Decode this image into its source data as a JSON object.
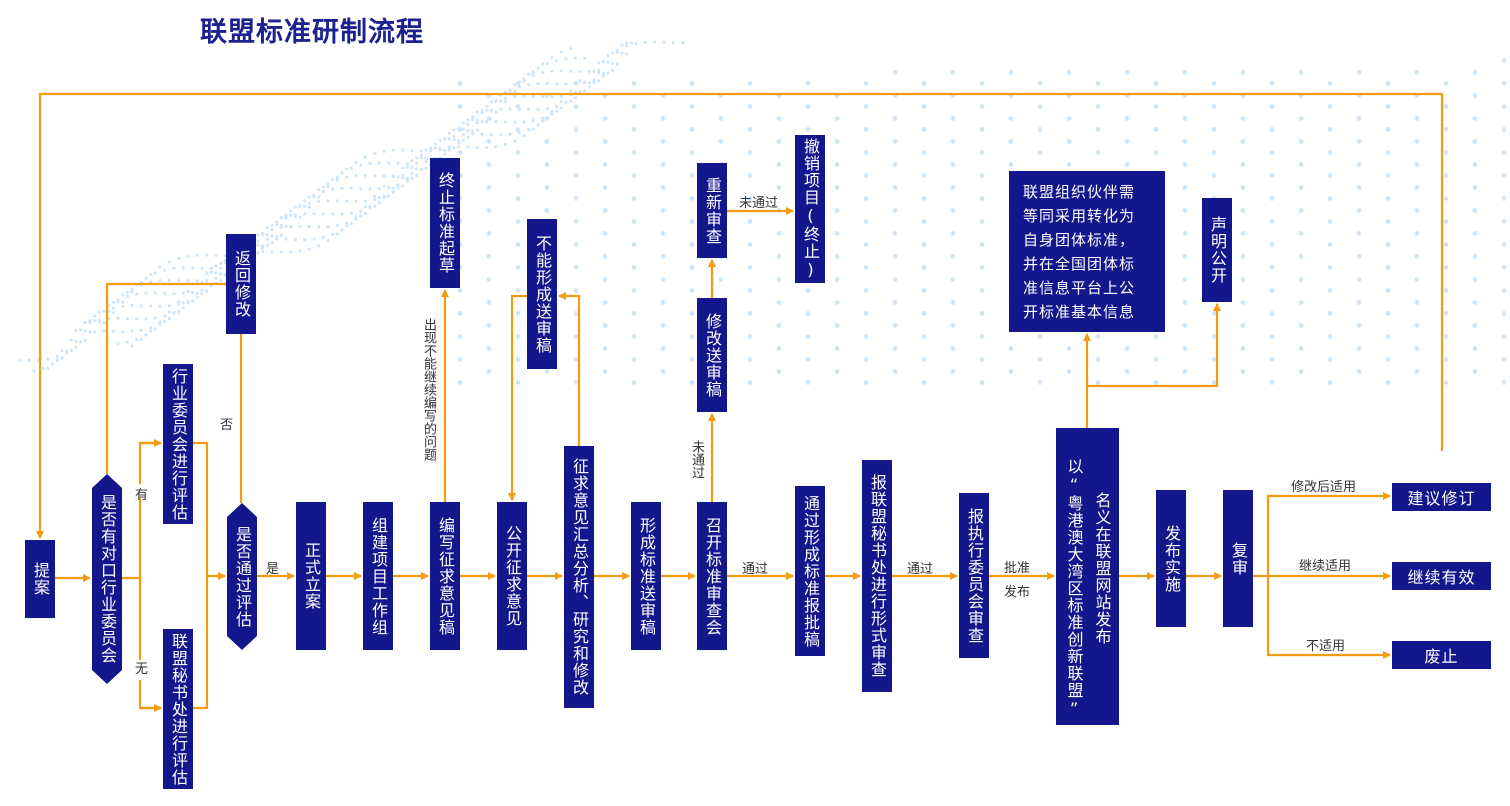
{
  "title": "联盟标准研制流程",
  "colors": {
    "box": "#14168c",
    "line": "#f39c12",
    "title": "#1c2190",
    "dots": "#cfe6f8"
  },
  "nodes": {
    "proposal": "提案",
    "has_committee": "是否有对口行业委员会",
    "committee_eval": "行业委员会进行评估",
    "secretariat_eval": "联盟秘书处进行评估",
    "return_modify": "返回修改",
    "passed_eval": "是否通过评估",
    "formal_filing": "正式立案",
    "form_group": "组建项目工作组",
    "draft_consult": "编写征求意见稿",
    "terminate_draft": "终止标准起草",
    "public_consult": "公开征求意见",
    "cannot_form": "不能形成送审稿",
    "analyze": "征求意见汇总分析、研究和修改",
    "form_review_draft": "形成标准送审稿",
    "review_meeting": "召开标准审查会",
    "modify_review": "修改送审稿",
    "re_review": "重新审查",
    "revoke": "撤销项目(终止)",
    "approval_draft": "通过形成标准报批稿",
    "formal_check": "报联盟秘书处进行形式审查",
    "exec_review": "报执行委员会审查",
    "publish_col1": "以“粤港澳大湾区标准创新联盟”",
    "publish_col2": "名义在联盟网站发布",
    "partner_adopt": [
      "联盟组织伙伴需",
      "等同采用转化为",
      "自身团体标准，",
      "并在全国团体标",
      "准信息平台上公",
      "开标准基本信息"
    ],
    "declare": "声明公开",
    "implement": "发布实施",
    "re_examine": "复审",
    "suggest_revise": "建议修订",
    "stay_valid": "继续有效",
    "abolish": "废止"
  },
  "labels": {
    "yes_has": "有",
    "no_has": "无",
    "no": "否",
    "yes": "是",
    "cannot_continue": "出现不能继续编写的问题",
    "not_passed_h": "未通过",
    "not_passed_v": "未通过",
    "passed1": "通过",
    "passed2": "通过",
    "approve": "批准",
    "publish": "发布",
    "apply_after_modify": "修改后适用",
    "continue_apply": "继续适用",
    "not_apply": "不适用"
  }
}
